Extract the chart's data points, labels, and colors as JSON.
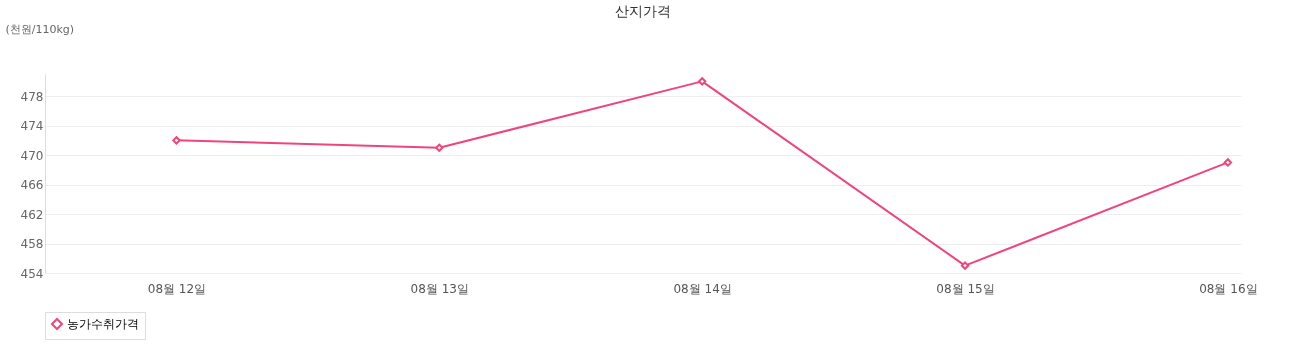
{
  "chart_data": {
    "type": "line",
    "title": "산지가격",
    "ylabel": "(천원/110kg)",
    "categories": [
      "08월 12일",
      "08월 13일",
      "08월 14일",
      "08월 15일",
      "08월 16일"
    ],
    "series": [
      {
        "name": "농가수취가격",
        "color": "#f0457a",
        "values": [
          472,
          471,
          480,
          455,
          469
        ]
      }
    ],
    "ylim": [
      454,
      481
    ],
    "yticks": [
      454,
      458,
      462,
      466,
      470,
      474,
      478
    ],
    "grid": "y",
    "legend": "bottom",
    "marker": "diamond",
    "line_style": "solid"
  }
}
